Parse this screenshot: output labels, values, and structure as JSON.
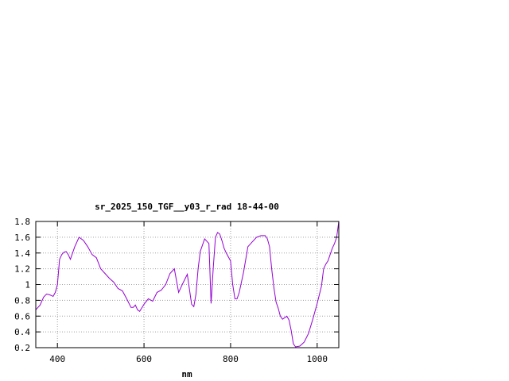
{
  "chart_data": {
    "type": "line",
    "title": "sr_2025_150_TGF__y03_r_rad 18-44-00",
    "xlabel": "nm",
    "ylabel": "",
    "xlim": [
      350,
      1050
    ],
    "ylim": [
      0.2,
      1.8
    ],
    "xticks": [
      400,
      600,
      800,
      1000
    ],
    "xtick_labels": [
      "400",
      "600",
      "800",
      "1000"
    ],
    "yticks": [
      0.2,
      0.4,
      0.6,
      0.8,
      1.0,
      1.2,
      1.4,
      1.6,
      1.8
    ],
    "ytick_labels": [
      "0.2",
      "0.4",
      "0.6",
      "0.8",
      "1",
      "1.2",
      "1.4",
      "1.6",
      "1.8"
    ],
    "grid": true,
    "colors": {
      "line": "#9400d3",
      "grid": "#a0a0a0",
      "axis": "#000000"
    },
    "series": [
      {
        "x": [
          350,
          360,
          368,
          375,
          382,
          390,
          395,
          400,
          405,
          410,
          415,
          420,
          425,
          430,
          440,
          450,
          460,
          470,
          480,
          490,
          500,
          510,
          520,
          530,
          540,
          550,
          560,
          570,
          575,
          580,
          585,
          590,
          600,
          610,
          620,
          630,
          640,
          650,
          660,
          670,
          680,
          690,
          700,
          710,
          715,
          720,
          725,
          730,
          740,
          750,
          755,
          760,
          765,
          770,
          775,
          780,
          785,
          790,
          800,
          805,
          810,
          815,
          820,
          830,
          840,
          850,
          860,
          870,
          875,
          880,
          885,
          890,
          895,
          900,
          905,
          910,
          915,
          920,
          925,
          930,
          935,
          940,
          945,
          950,
          960,
          970,
          980,
          990,
          1000,
          1010,
          1015,
          1020,
          1025,
          1030,
          1035,
          1040,
          1045,
          1050
        ],
        "y": [
          0.68,
          0.74,
          0.84,
          0.88,
          0.87,
          0.85,
          0.9,
          1.0,
          1.32,
          1.38,
          1.41,
          1.42,
          1.38,
          1.32,
          1.48,
          1.6,
          1.56,
          1.48,
          1.38,
          1.34,
          1.2,
          1.14,
          1.08,
          1.03,
          0.95,
          0.92,
          0.82,
          0.71,
          0.71,
          0.74,
          0.68,
          0.66,
          0.75,
          0.82,
          0.79,
          0.9,
          0.93,
          1.0,
          1.14,
          1.2,
          0.9,
          1.02,
          1.13,
          0.75,
          0.72,
          0.88,
          1.2,
          1.42,
          1.58,
          1.52,
          0.76,
          1.22,
          1.6,
          1.66,
          1.64,
          1.56,
          1.46,
          1.4,
          1.3,
          1.0,
          0.82,
          0.82,
          0.9,
          1.16,
          1.48,
          1.54,
          1.6,
          1.62,
          1.62,
          1.62,
          1.58,
          1.48,
          1.2,
          0.96,
          0.78,
          0.7,
          0.6,
          0.56,
          0.58,
          0.6,
          0.55,
          0.42,
          0.25,
          0.21,
          0.22,
          0.27,
          0.38,
          0.56,
          0.76,
          0.98,
          1.2,
          1.26,
          1.3,
          1.38,
          1.46,
          1.52,
          1.6,
          1.8
        ]
      }
    ]
  }
}
